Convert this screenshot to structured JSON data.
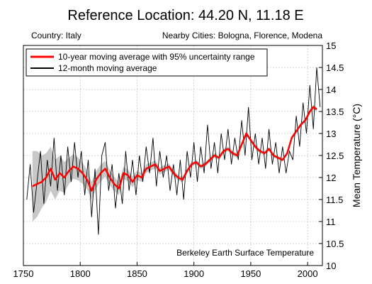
{
  "chart_data": {
    "type": "line",
    "title": "Reference Location: 44.20 N, 11.18 E",
    "subtitle_left": "Country: Italy",
    "subtitle_right": "Nearby Cities: Bologna, Florence, Modena",
    "xlabel": "",
    "ylabel": "Mean Temperature (°C)",
    "xlim": [
      1750,
      2013
    ],
    "ylim": [
      10,
      15
    ],
    "x_ticks": [
      1750,
      1800,
      1850,
      1900,
      1950,
      2000
    ],
    "y_ticks": [
      10,
      10.5,
      11,
      11.5,
      12,
      12.5,
      13,
      13.5,
      14,
      14.5,
      15
    ],
    "y_tick_labels": [
      "10",
      "10.5",
      "11",
      "11.5",
      "12",
      "12.5",
      "13",
      "13.5",
      "14",
      "14.5",
      "15"
    ],
    "x_tick_labels": [
      "1750",
      "1800",
      "1850",
      "1900",
      "1950",
      "2000"
    ],
    "grid": true,
    "y_axis_side": "right",
    "legend_position": "top-left",
    "legend": [
      "10-year moving average with 95% uncertainty range",
      "12-month moving average"
    ],
    "annotation": "Berkeley Earth Surface Temperature",
    "colors": {
      "moving_avg_10yr": "#ff0000",
      "moving_avg_12mo": "#000000",
      "uncertainty": "#c8c8c8",
      "grid": "#b0b0b0"
    },
    "series": [
      {
        "name": "10-year moving average with 95% uncertainty range",
        "x": [
          1758,
          1762,
          1766,
          1770,
          1774,
          1778,
          1782,
          1786,
          1790,
          1794,
          1798,
          1802,
          1806,
          1810,
          1814,
          1818,
          1822,
          1826,
          1830,
          1834,
          1838,
          1842,
          1846,
          1850,
          1854,
          1858,
          1862,
          1866,
          1870,
          1874,
          1878,
          1882,
          1886,
          1890,
          1894,
          1898,
          1902,
          1906,
          1910,
          1914,
          1918,
          1922,
          1926,
          1930,
          1934,
          1938,
          1942,
          1946,
          1950,
          1954,
          1958,
          1962,
          1966,
          1970,
          1974,
          1978,
          1982,
          1986,
          1990,
          1994,
          1998,
          2002,
          2005,
          2008
        ],
        "values": [
          11.8,
          11.85,
          11.9,
          12.0,
          12.2,
          11.95,
          12.1,
          12.0,
          12.15,
          12.25,
          12.2,
          12.1,
          11.95,
          11.7,
          11.95,
          12.1,
          12.2,
          12.0,
          11.85,
          11.75,
          12.1,
          12.05,
          11.9,
          12.05,
          12.0,
          12.2,
          12.25,
          12.3,
          12.15,
          12.2,
          12.25,
          12.1,
          12.0,
          11.95,
          12.15,
          12.3,
          12.35,
          12.25,
          12.3,
          12.4,
          12.5,
          12.45,
          12.6,
          12.65,
          12.55,
          12.5,
          12.75,
          13.0,
          12.85,
          12.7,
          12.6,
          12.55,
          12.65,
          12.5,
          12.45,
          12.4,
          12.55,
          12.9,
          13.05,
          13.2,
          13.3,
          13.5,
          13.6,
          13.55
        ],
        "uncertainty_halfwidth": [
          0.8,
          0.75,
          0.6,
          0.55,
          0.5,
          0.45,
          0.4,
          0.35,
          0.3,
          0.28,
          0.26,
          0.24,
          0.22,
          0.2,
          0.2,
          0.19,
          0.18,
          0.17,
          0.16,
          0.15,
          0.14,
          0.13,
          0.12,
          0.11,
          0.1,
          0.1,
          0.09,
          0.09,
          0.08,
          0.08,
          0.07,
          0.07,
          0.06,
          0.06,
          0.06,
          0.05,
          0.05,
          0.05,
          0.05,
          0.05,
          0.05,
          0.05,
          0.05,
          0.05,
          0.05,
          0.05,
          0.05,
          0.05,
          0.05,
          0.05,
          0.04,
          0.04,
          0.04,
          0.04,
          0.04,
          0.04,
          0.04,
          0.04,
          0.04,
          0.04,
          0.04,
          0.05,
          0.05,
          0.05
        ]
      },
      {
        "name": "12-month moving average",
        "x": [
          1753,
          1756,
          1759,
          1762,
          1765,
          1768,
          1771,
          1774,
          1777,
          1780,
          1783,
          1786,
          1789,
          1792,
          1795,
          1798,
          1801,
          1804,
          1807,
          1810,
          1813,
          1816,
          1819,
          1822,
          1825,
          1828,
          1831,
          1834,
          1837,
          1840,
          1843,
          1846,
          1849,
          1852,
          1855,
          1858,
          1861,
          1864,
          1867,
          1870,
          1873,
          1876,
          1879,
          1882,
          1885,
          1888,
          1891,
          1894,
          1897,
          1900,
          1903,
          1906,
          1909,
          1912,
          1915,
          1918,
          1921,
          1924,
          1927,
          1930,
          1933,
          1936,
          1939,
          1942,
          1945,
          1948,
          1951,
          1954,
          1957,
          1960,
          1963,
          1966,
          1969,
          1972,
          1975,
          1978,
          1981,
          1984,
          1987,
          1990,
          1993,
          1996,
          1999,
          2002,
          2005,
          2008,
          2011
        ],
        "values": [
          11.5,
          12.3,
          11.2,
          11.9,
          12.6,
          11.4,
          12.4,
          11.8,
          12.9,
          11.7,
          12.5,
          11.6,
          12.7,
          11.9,
          12.8,
          12.0,
          12.6,
          11.6,
          12.4,
          11.1,
          12.2,
          10.7,
          12.5,
          12.8,
          11.7,
          12.3,
          11.3,
          12.1,
          11.4,
          12.6,
          11.7,
          12.4,
          11.6,
          12.5,
          11.9,
          12.7,
          12.1,
          12.9,
          11.8,
          12.6,
          12.0,
          12.5,
          11.7,
          12.3,
          11.6,
          12.4,
          11.5,
          12.6,
          12.0,
          12.8,
          11.9,
          12.7,
          12.1,
          13.2,
          12.2,
          12.8,
          12.1,
          13.0,
          12.4,
          13.1,
          12.3,
          12.9,
          12.4,
          13.3,
          12.5,
          13.6,
          12.4,
          13.0,
          12.3,
          12.9,
          12.2,
          13.1,
          12.3,
          12.8,
          12.1,
          12.7,
          12.1,
          12.6,
          12.4,
          13.4,
          12.7,
          13.7,
          13.0,
          14.1,
          13.1,
          14.5,
          13.6
        ]
      }
    ]
  }
}
